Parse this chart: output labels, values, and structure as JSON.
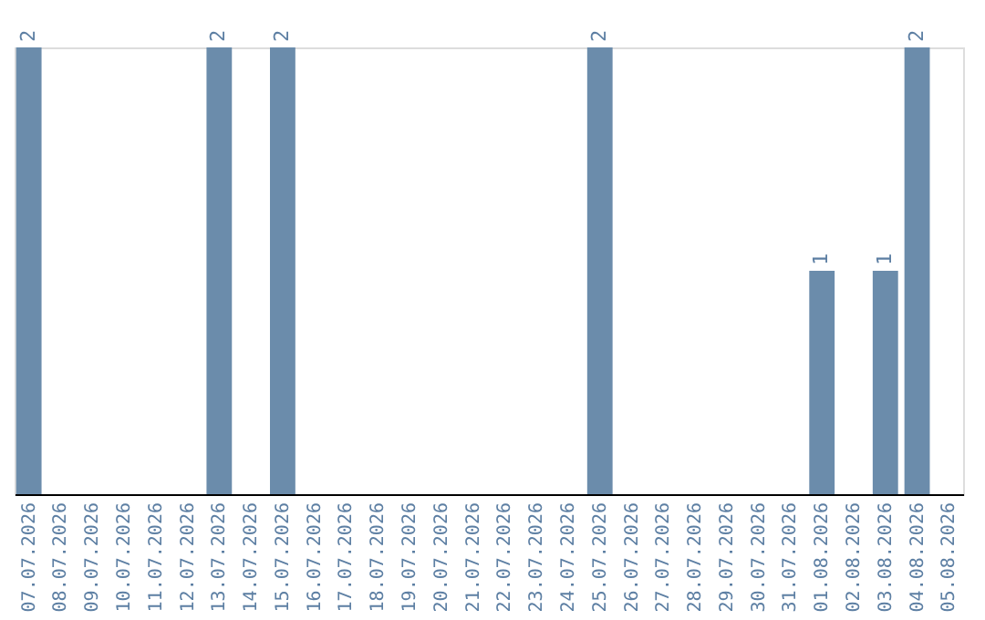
{
  "chart_data": {
    "type": "bar",
    "categories": [
      "07.07.2026",
      "08.07.2026",
      "09.07.2026",
      "10.07.2026",
      "11.07.2026",
      "12.07.2026",
      "13.07.2026",
      "14.07.2026",
      "15.07.2026",
      "16.07.2026",
      "17.07.2026",
      "18.07.2026",
      "19.07.2026",
      "20.07.2026",
      "21.07.2026",
      "22.07.2026",
      "23.07.2026",
      "24.07.2026",
      "25.07.2026",
      "26.07.2026",
      "27.07.2026",
      "28.07.2026",
      "29.07.2026",
      "30.07.2026",
      "31.07.2026",
      "01.08.2026",
      "02.08.2026",
      "03.08.2026",
      "04.08.2026",
      "05.08.2026"
    ],
    "values": [
      2,
      0,
      0,
      0,
      0,
      0,
      2,
      0,
      2,
      0,
      0,
      0,
      0,
      0,
      0,
      0,
      0,
      0,
      2,
      0,
      0,
      0,
      0,
      0,
      0,
      1,
      0,
      1,
      2,
      0
    ],
    "value_labels": [
      "2",
      null,
      null,
      null,
      null,
      null,
      "2",
      null,
      "2",
      null,
      null,
      null,
      null,
      null,
      null,
      null,
      null,
      null,
      "2",
      null,
      null,
      null,
      null,
      null,
      null,
      "1",
      null,
      "1",
      "2",
      null
    ],
    "color": "#6b8cab",
    "tick_labels": "x",
    "grid": false
  }
}
